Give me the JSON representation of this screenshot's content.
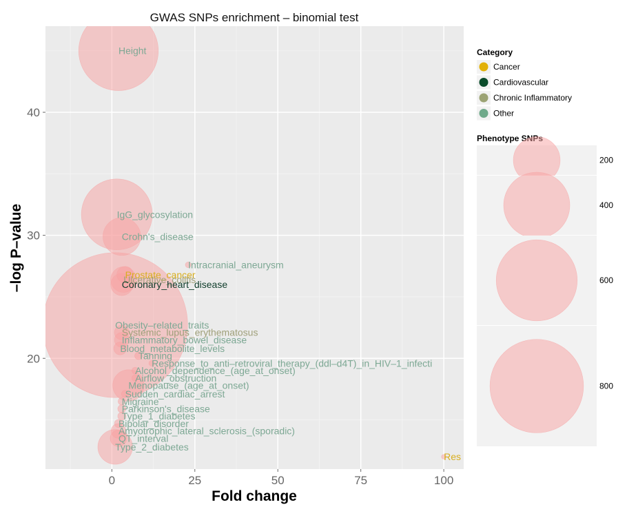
{
  "chart_data": {
    "type": "scatter",
    "title": "GWAS SNPs enrichment – binomial test",
    "xlabel": "Fold change",
    "ylabel": "–log P–value",
    "xlim": [
      -20,
      106
    ],
    "ylim": [
      11,
      47
    ],
    "x_ticks": [
      0,
      25,
      50,
      75,
      100
    ],
    "y_ticks": [
      20,
      30,
      40
    ],
    "grid": true,
    "category_legend": {
      "title": "Category",
      "placement": "right",
      "items": [
        {
          "name": "Cancer",
          "color": "#E2B007"
        },
        {
          "name": "Cardiovascular",
          "color": "#0A4B2A"
        },
        {
          "name": "Chronic Inflammatory",
          "color": "#9CA374"
        },
        {
          "name": "Other",
          "color": "#6FA98A"
        }
      ]
    },
    "size_legend": {
      "title": "Phenotype SNPs",
      "placement": "right",
      "items": [
        {
          "label": "200",
          "value": 200
        },
        {
          "label": "400",
          "value": 400
        },
        {
          "label": "600",
          "value": 600
        },
        {
          "label": "800",
          "value": 800
        }
      ]
    },
    "bubble_color": "#F7A1A1",
    "label_color_map": {
      "Cancer": "#D8AE1E",
      "Cardiovascular": "#0F3D2B",
      "Chronic Inflammatory": "#A0A07A",
      "Other": "#7DA894"
    },
    "points": [
      {
        "label": "Height",
        "x": 2,
        "y": 45,
        "snps": 580,
        "category": "Other"
      },
      {
        "label": "IgG_glycosylation",
        "x": 1.5,
        "y": 31.7,
        "snps": 460,
        "category": "Other"
      },
      {
        "label": "Crohn's_disease",
        "x": 3,
        "y": 29.9,
        "snps": 130,
        "category": "Other"
      },
      {
        "label": "Intracranial_aneurysm",
        "x": 23,
        "y": 27.6,
        "snps": 3,
        "category": "Other"
      },
      {
        "label": "Prostate_cancer",
        "x": 4,
        "y": 26.8,
        "snps": 25,
        "category": "Cancer"
      },
      {
        "label": "Ulcerative_colitis",
        "x": 3.5,
        "y": 26.4,
        "snps": 60,
        "category": "Chronic Inflammatory"
      },
      {
        "label": "Coronary_heart_disease",
        "x": 3,
        "y": 26.0,
        "snps": 45,
        "category": "Cardiovascular"
      },
      {
        "label": "Obesity–related_traits",
        "x": 1,
        "y": 22.7,
        "snps": 1920,
        "category": "Other"
      },
      {
        "label": "Systemic_lupus_erythematosus",
        "x": 3,
        "y": 22.1,
        "snps": 20,
        "category": "Chronic Inflammatory"
      },
      {
        "label": "Inflammatory_bowel_disease",
        "x": 3,
        "y": 21.5,
        "snps": 20,
        "category": "Other"
      },
      {
        "label": "Blood_metabolite_levels",
        "x": 2.5,
        "y": 20.8,
        "snps": 15,
        "category": "Other"
      },
      {
        "label": "Tanning",
        "x": 8,
        "y": 20.2,
        "snps": 5,
        "category": "Other"
      },
      {
        "label": "Response_to_anti–retroviral_therapy_(ddl–d4T)_in_HIV–1_infecti",
        "x": 12,
        "y": 19.6,
        "snps": 3,
        "category": "Other"
      },
      {
        "label": "Alcohol_dependence_(age_at_onset)",
        "x": 7,
        "y": 19.0,
        "snps": 4,
        "category": "Other"
      },
      {
        "label": "Airflow_obstruction",
        "x": 7,
        "y": 18.4,
        "snps": 4,
        "category": "Other"
      },
      {
        "label": "Menopause_(age_at_onset)",
        "x": 5,
        "y": 17.8,
        "snps": 90,
        "category": "Other"
      },
      {
        "label": "Sudden_cardiac_arrest",
        "x": 4,
        "y": 17.1,
        "snps": 5,
        "category": "Other"
      },
      {
        "label": "Migraine",
        "x": 3,
        "y": 16.5,
        "snps": 5,
        "category": "Other"
      },
      {
        "label": "Parkinson's_disease",
        "x": 3,
        "y": 15.9,
        "snps": 6,
        "category": "Other"
      },
      {
        "label": "Type_1_diabetes",
        "x": 3,
        "y": 15.3,
        "snps": 6,
        "category": "Other"
      },
      {
        "label": "Bipolar_disorder",
        "x": 2,
        "y": 14.7,
        "snps": 6,
        "category": "Other"
      },
      {
        "label": "Amyotrophic_lateral_sclerosis_(sporadic)",
        "x": 2,
        "y": 14.1,
        "snps": 20,
        "category": "Other"
      },
      {
        "label": "QT_interval",
        "x": 2,
        "y": 13.5,
        "snps": 25,
        "category": "Other"
      },
      {
        "label": "Type_2_diabetes",
        "x": 1,
        "y": 12.8,
        "snps": 110,
        "category": "Other"
      },
      {
        "label": "Res",
        "x": 100,
        "y": 12.0,
        "snps": 2,
        "category": "Cancer"
      }
    ]
  }
}
